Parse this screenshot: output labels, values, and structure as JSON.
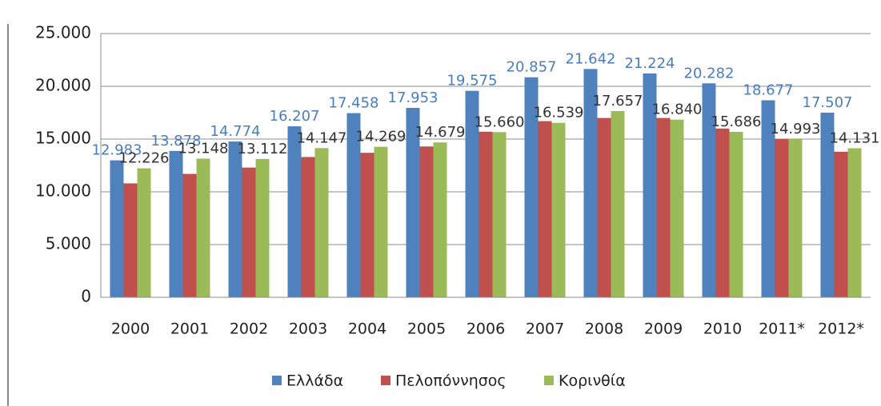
{
  "chart_data": {
    "type": "bar",
    "categories": [
      "2000",
      "2001",
      "2002",
      "2003",
      "2004",
      "2005",
      "2006",
      "2007",
      "2008",
      "2009",
      "2010",
      "2011*",
      "2012*"
    ],
    "series": [
      {
        "name": "Ελλάδα",
        "color": "#4f81bd",
        "label_color": "#4a7ebb",
        "values": [
          12983,
          13878,
          14774,
          16207,
          17458,
          17953,
          19575,
          20857,
          21642,
          21224,
          20282,
          18677,
          17507
        ],
        "value_labels": [
          "12.983",
          "13.878",
          "14.774",
          "16.207",
          "17.458",
          "17.953",
          "19.575",
          "20.857",
          "21.642",
          "21.224",
          "20.282",
          "18.677",
          "17.507"
        ]
      },
      {
        "name": "Πελοπόννησος",
        "color": "#c0504d",
        "values": [
          10800,
          11700,
          12300,
          13300,
          13700,
          14300,
          15700,
          16700,
          17000,
          17000,
          16000,
          15000,
          13800
        ]
      },
      {
        "name": "Κορινθία",
        "color": "#9bbb59",
        "label_color": "#333333",
        "values": [
          12226,
          13148,
          13112,
          14147,
          14269,
          14679,
          15660,
          16539,
          17657,
          16840,
          15686,
          14993,
          14131
        ],
        "value_labels": [
          "12.226",
          "13.148",
          "13.112",
          "14.147",
          "14.269",
          "14.679",
          "15.660",
          "16.539",
          "17.657",
          "16.840",
          "15.686",
          "14.993",
          "14.131"
        ]
      }
    ],
    "ylim": [
      0,
      25000
    ],
    "yticks": [
      0,
      {
        "value": 5000,
        "label": "5.000"
      },
      {
        "value": 10000,
        "label": "10.000"
      },
      {
        "value": 15000,
        "label": "15.000"
      },
      {
        "value": 20000,
        "label": "20.000"
      },
      {
        "value": 25000,
        "label": "25.000"
      }
    ],
    "grid": true,
    "legend": "bottom"
  }
}
